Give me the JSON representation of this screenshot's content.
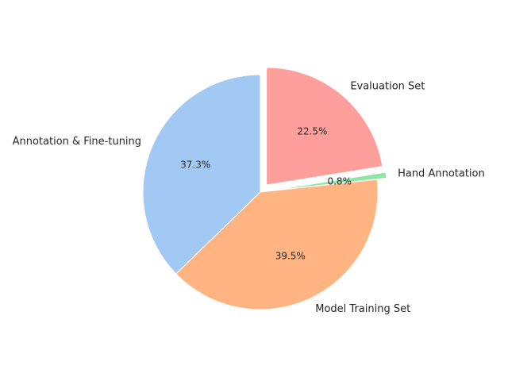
{
  "chart_data": {
    "type": "pie",
    "categories": [
      "Annotation & Fine-tuning",
      "Model Training Set",
      "Hand Annotation",
      "Evaluation Set"
    ],
    "values": [
      37.3,
      39.5,
      0.8,
      22.5
    ],
    "value_labels": [
      "37.3%",
      "39.5%",
      "0.8%",
      "22.5%"
    ],
    "colors": [
      "#a1c9f4",
      "#ffb482",
      "#8de5a1",
      "#ff9f9b"
    ],
    "exploded": [
      false,
      false,
      true,
      true
    ],
    "start_angle_deg": 90,
    "direction": "counterclockwise"
  }
}
